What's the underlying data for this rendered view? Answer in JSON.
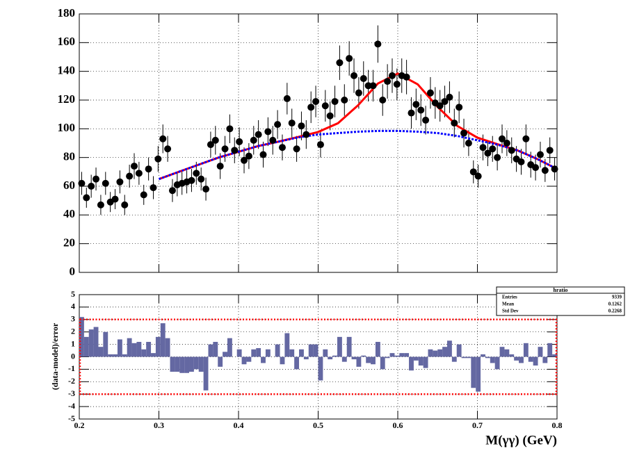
{
  "chart_data": [
    {
      "type": "scatter",
      "xlim": [
        0.2,
        0.8
      ],
      "xticks": [
        0.2,
        0.3,
        0.4,
        0.5,
        0.6,
        0.7,
        0.8
      ],
      "ylim": [
        0,
        180
      ],
      "yticks": [
        0,
        20,
        40,
        60,
        80,
        100,
        120,
        140,
        160,
        180
      ],
      "grid": true,
      "color": "#000000",
      "x": [
        0.203,
        0.209,
        0.215,
        0.221,
        0.227,
        0.233,
        0.239,
        0.245,
        0.251,
        0.257,
        0.263,
        0.269,
        0.275,
        0.281,
        0.287,
        0.293,
        0.299,
        0.305,
        0.311,
        0.317,
        0.323,
        0.329,
        0.335,
        0.341,
        0.347,
        0.353,
        0.359,
        0.365,
        0.371,
        0.377,
        0.383,
        0.389,
        0.395,
        0.401,
        0.407,
        0.413,
        0.419,
        0.425,
        0.431,
        0.437,
        0.443,
        0.449,
        0.455,
        0.461,
        0.467,
        0.473,
        0.479,
        0.485,
        0.491,
        0.497,
        0.503,
        0.509,
        0.515,
        0.521,
        0.527,
        0.533,
        0.539,
        0.545,
        0.551,
        0.557,
        0.563,
        0.569,
        0.575,
        0.581,
        0.587,
        0.593,
        0.599,
        0.605,
        0.611,
        0.617,
        0.623,
        0.629,
        0.635,
        0.641,
        0.647,
        0.653,
        0.659,
        0.665,
        0.671,
        0.677,
        0.683,
        0.689,
        0.695,
        0.701,
        0.707,
        0.713,
        0.719,
        0.725,
        0.731,
        0.737,
        0.743,
        0.749,
        0.755,
        0.761,
        0.767,
        0.773,
        0.779,
        0.785,
        0.791,
        0.797
      ],
      "values": [
        62,
        52,
        60,
        65,
        47,
        62,
        49,
        51,
        63,
        47,
        67,
        74,
        69,
        54,
        72,
        59,
        79,
        93,
        86,
        57,
        61,
        62,
        63,
        64,
        69,
        65,
        58,
        89,
        92,
        74,
        86,
        100,
        85,
        91,
        78,
        81,
        92,
        96,
        82,
        98,
        92,
        103,
        87,
        121,
        104,
        86,
        102,
        96,
        115,
        119,
        89,
        116,
        109,
        119,
        146,
        120,
        149,
        137,
        125,
        135,
        130,
        130,
        159,
        120,
        133,
        137,
        131,
        137,
        136,
        111,
        117,
        113,
        106,
        125,
        118,
        116,
        119,
        122,
        104,
        115,
        97,
        90,
        70,
        67,
        87,
        83,
        86,
        80,
        93,
        90,
        85,
        79,
        77,
        93,
        75,
        73,
        82,
        71,
        85,
        72
      ],
      "errors": [
        8,
        7,
        8,
        8,
        7,
        8,
        7,
        7,
        8,
        7,
        8,
        9,
        8,
        7,
        8,
        8,
        9,
        10,
        9,
        8,
        8,
        8,
        8,
        8,
        8,
        8,
        8,
        9,
        10,
        9,
        9,
        10,
        9,
        10,
        9,
        9,
        10,
        10,
        9,
        10,
        10,
        10,
        9,
        11,
        10,
        9,
        10,
        10,
        11,
        11,
        9,
        11,
        10,
        11,
        12,
        11,
        12,
        12,
        11,
        12,
        11,
        11,
        13,
        11,
        12,
        12,
        11,
        12,
        12,
        11,
        11,
        11,
        10,
        11,
        11,
        11,
        11,
        11,
        10,
        11,
        10,
        9,
        8,
        8,
        9,
        9,
        9,
        9,
        10,
        9,
        9,
        9,
        9,
        10,
        9,
        9,
        9,
        8,
        9,
        8
      ],
      "curves": [
        {
          "color": "#ff0000",
          "x": [
            0.3,
            0.325,
            0.35,
            0.375,
            0.4,
            0.425,
            0.45,
            0.475,
            0.5,
            0.525,
            0.55,
            0.575,
            0.6,
            0.625,
            0.65,
            0.675,
            0.7,
            0.725,
            0.75,
            0.775,
            0.8
          ],
          "values": [
            65,
            70,
            75,
            80,
            84,
            88,
            91,
            94.3,
            97.8,
            103.9,
            116.3,
            131.5,
            138.5,
            131,
            115.3,
            101.9,
            93.8,
            89.3,
            85,
            79,
            72
          ]
        },
        {
          "color": "#0000ff",
          "x": [
            0.3,
            0.325,
            0.35,
            0.375,
            0.4,
            0.425,
            0.45,
            0.475,
            0.5,
            0.525,
            0.55,
            0.575,
            0.6,
            0.625,
            0.65,
            0.675,
            0.7,
            0.725,
            0.75,
            0.775,
            0.8
          ],
          "values": [
            65,
            70,
            75,
            80,
            84,
            88,
            91,
            94,
            96,
            97,
            98,
            98.5,
            98.5,
            98,
            97,
            95,
            92,
            89,
            85,
            79,
            72
          ]
        }
      ]
    },
    {
      "type": "histogram",
      "xlim": [
        0.2,
        0.8
      ],
      "xticks": [
        0.2,
        0.3,
        0.4,
        0.5,
        0.6,
        0.7,
        0.8
      ],
      "ylim": [
        -5,
        5
      ],
      "yticks": [
        -5,
        -4,
        -3,
        -2,
        -1,
        0,
        1,
        2,
        3,
        4,
        5
      ],
      "grid": true,
      "color": "#6468a2",
      "xlabel": "M(γγ) (GeV)",
      "ylabel": "(data-model)/error",
      "band": [
        -3,
        3
      ],
      "band_color": "#ff0000",
      "bins": [
        0.2,
        0.206,
        0.212,
        0.218,
        0.224,
        0.23,
        0.236,
        0.242,
        0.248,
        0.254,
        0.26,
        0.266,
        0.272,
        0.278,
        0.284,
        0.29,
        0.296,
        0.302,
        0.308,
        0.314,
        0.32,
        0.326,
        0.332,
        0.338,
        0.344,
        0.35,
        0.356,
        0.362,
        0.368,
        0.374,
        0.38,
        0.386,
        0.392,
        0.398,
        0.404,
        0.41,
        0.416,
        0.422,
        0.428,
        0.434,
        0.44,
        0.446,
        0.452,
        0.458,
        0.464,
        0.47,
        0.476,
        0.482,
        0.488,
        0.494,
        0.5,
        0.506,
        0.512,
        0.518,
        0.524,
        0.53,
        0.536,
        0.542,
        0.548,
        0.554,
        0.56,
        0.566,
        0.572,
        0.578,
        0.584,
        0.59,
        0.596,
        0.602,
        0.608,
        0.614,
        0.62,
        0.626,
        0.632,
        0.638,
        0.644,
        0.65,
        0.656,
        0.662,
        0.668,
        0.674,
        0.68,
        0.686,
        0.692,
        0.698,
        0.704,
        0.71,
        0.716,
        0.722,
        0.728,
        0.734,
        0.74,
        0.746,
        0.752,
        0.758,
        0.764,
        0.77,
        0.776,
        0.782,
        0.788,
        0.794,
        0.8
      ],
      "values": [
        3.2,
        1.6,
        2.2,
        2.4,
        0.8,
        2.0,
        0.2,
        0.2,
        1.4,
        0.2,
        1.5,
        1.1,
        1.2,
        0.6,
        1.2,
        0.3,
        1.6,
        2.7,
        1.5,
        -1.2,
        -1.2,
        -1.3,
        -1.3,
        -1.2,
        -1.0,
        -1.2,
        -2.7,
        1.0,
        1.2,
        -0.8,
        0.4,
        1.5,
        0.0,
        0.6,
        -0.6,
        -0.4,
        0.6,
        0.7,
        -0.5,
        0.6,
        0.0,
        1.0,
        -0.6,
        1.9,
        0.6,
        -1.0,
        0.6,
        -0.2,
        1.0,
        1.0,
        -1.9,
        0.6,
        -0.2,
        0.1,
        1.6,
        -0.4,
        1.6,
        -0.2,
        -0.8,
        0.1,
        -0.5,
        -0.6,
        1.2,
        -1.0,
        -0.1,
        0.3,
        0.1,
        0.3,
        0.3,
        -1.1,
        -0.3,
        -0.7,
        -0.9,
        0.6,
        0.5,
        0.6,
        0.8,
        1.3,
        -0.4,
        1.0,
        -0.1,
        -0.1,
        -2.5,
        -2.8,
        0.2,
        -0.1,
        -0.5,
        -1.0,
        0.8,
        0.6,
        0.2,
        -0.3,
        -0.5,
        1.1,
        -0.4,
        -0.7,
        0.8,
        -0.5,
        1.1,
        0.2
      ],
      "stats": {
        "title": "hratio",
        "rows": [
          [
            "Entries",
            9339
          ],
          [
            "Mean",
            0.1262
          ],
          [
            "Std Dev",
            0.2268
          ]
        ]
      }
    }
  ]
}
